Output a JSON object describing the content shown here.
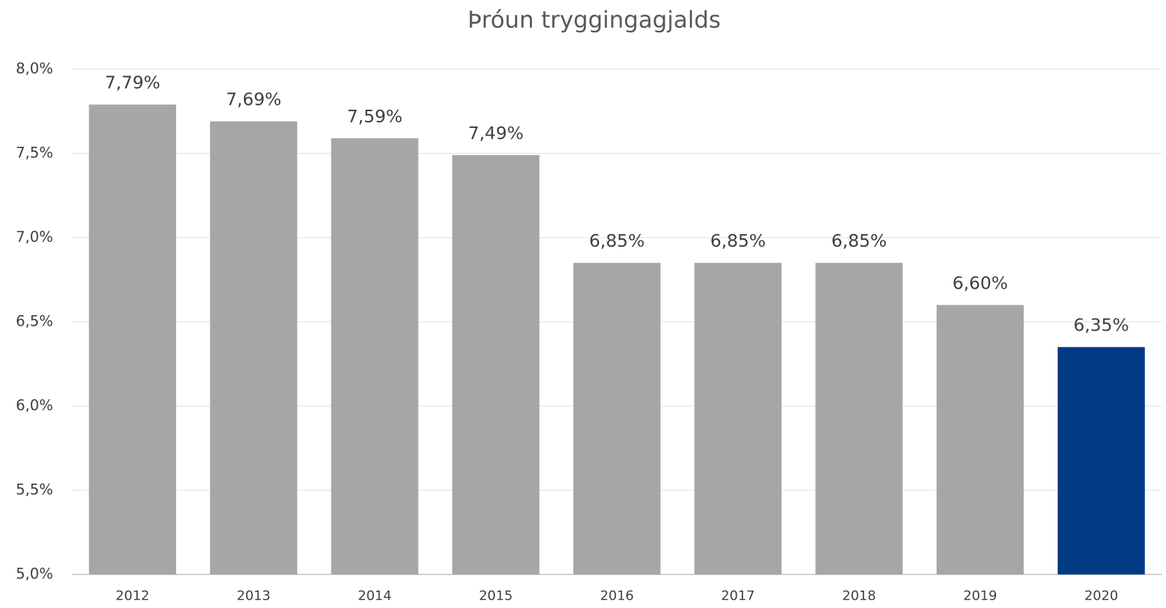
{
  "chart_data": {
    "type": "bar",
    "title": "Þróun tryggingagjalds",
    "categories": [
      "2012",
      "2013",
      "2014",
      "2015",
      "2016",
      "2017",
      "2018",
      "2019",
      "2020"
    ],
    "values": [
      7.79,
      7.69,
      7.59,
      7.49,
      6.85,
      6.85,
      6.85,
      6.6,
      6.35
    ],
    "value_labels": [
      "7,79%",
      "7,69%",
      "7,59%",
      "7,49%",
      "6,85%",
      "6,85%",
      "6,85%",
      "6,60%",
      "6,35%"
    ],
    "colors": [
      "#a6a6a6",
      "#a6a6a6",
      "#a6a6a6",
      "#a6a6a6",
      "#a6a6a6",
      "#a6a6a6",
      "#a6a6a6",
      "#a6a6a6",
      "#003b84"
    ],
    "ylim": [
      5,
      8
    ],
    "yticks": [
      {
        "value": 5,
        "label": "5,0%"
      },
      {
        "value": 5.5,
        "label": "5,5%"
      },
      {
        "value": 6,
        "label": "6,0%"
      },
      {
        "value": 6.5,
        "label": "6,5%"
      },
      {
        "value": 7,
        "label": "7,0%"
      },
      {
        "value": 7.5,
        "label": "7,5%"
      },
      {
        "value": 8,
        "label": "8,0%"
      }
    ],
    "grid": true
  }
}
